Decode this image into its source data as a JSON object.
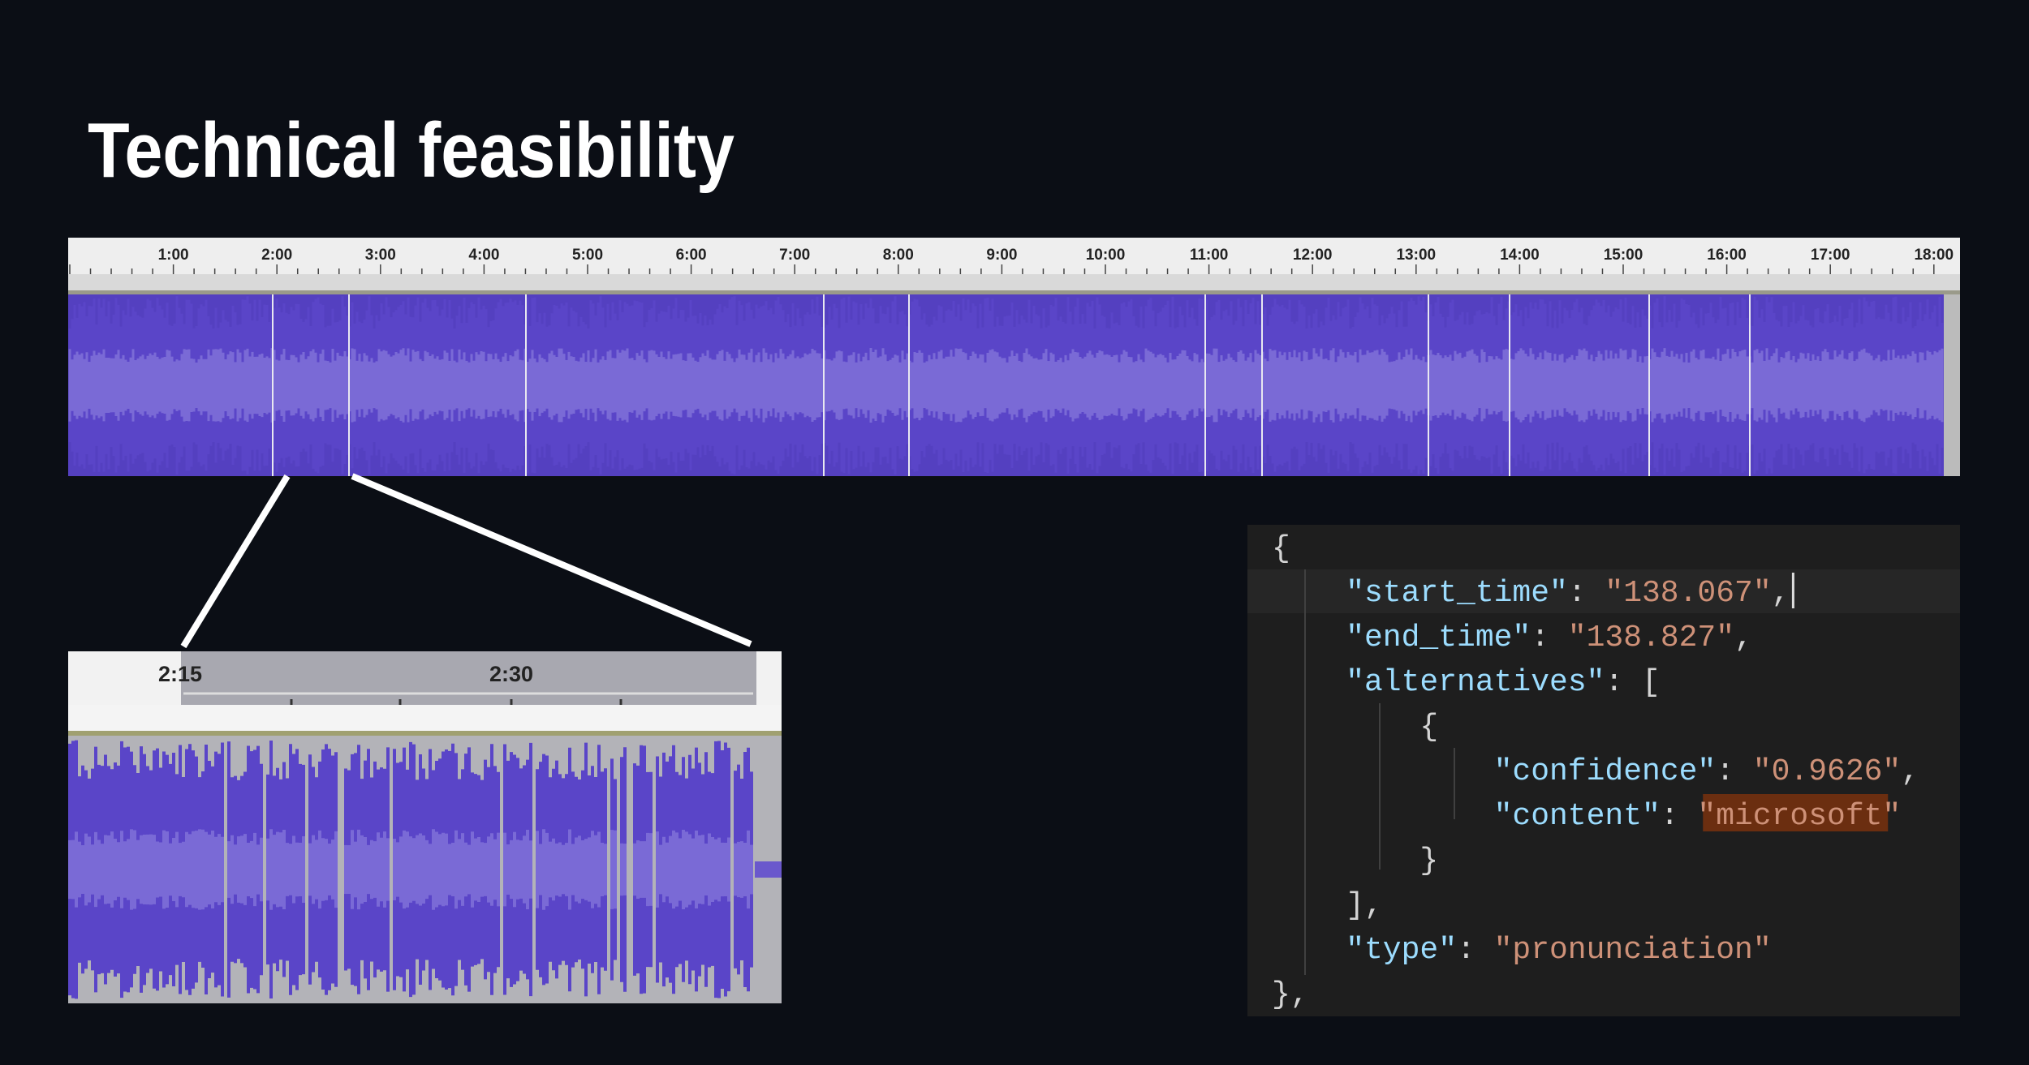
{
  "title": "Technical feasibility",
  "timeline": {
    "labels": [
      "1:00",
      "2:00",
      "3:00",
      "4:00",
      "5:00",
      "6:00",
      "7:00",
      "8:00",
      "9:00",
      "10:00",
      "11:00",
      "12:00",
      "13:00",
      "14:00",
      "15:00",
      "16:00",
      "17:00",
      "18:00"
    ]
  },
  "zoom": {
    "labels": [
      "2:15",
      "2:30"
    ]
  },
  "code": {
    "lines": [
      [
        "{"
      ],
      [
        "\"start_time\"",
        ": ",
        "\"138.067\"",
        ","
      ],
      [
        "\"end_time\"",
        ": ",
        "\"138.827\"",
        ","
      ],
      [
        "\"alternatives\"",
        ": ["
      ],
      [
        "{"
      ],
      [
        "\"confidence\"",
        ": ",
        "\"0.9626\"",
        ","
      ],
      [
        "\"content\"",
        ": ",
        "\"microsoft\""
      ],
      [
        "}"
      ],
      [
        "],"
      ],
      [
        "\"type\"",
        ": ",
        "\"pronunciation\""
      ],
      [
        "},"
      ]
    ]
  }
}
